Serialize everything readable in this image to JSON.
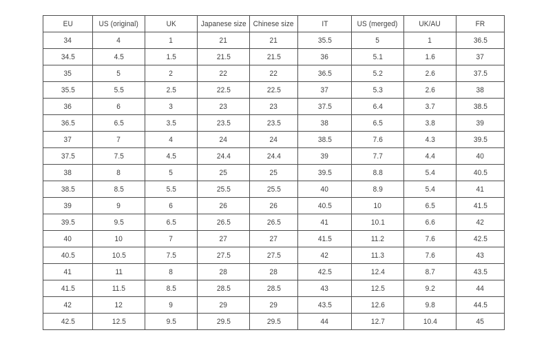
{
  "colors": {
    "background": "#ffffff",
    "border": "#4d4d4d",
    "text": "#3d3d3d"
  },
  "table": {
    "name": "shoe-size-conversion-chart",
    "headers": [
      "EU",
      "US (original)",
      "UK",
      "Japanese size",
      "Chinese size",
      "IT",
      "US (merged)",
      "UK/AU",
      "FR"
    ],
    "rows": [
      [
        "34",
        "4",
        "1",
        "21",
        "21",
        "35.5",
        "5",
        "1",
        "36.5"
      ],
      [
        "34.5",
        "4.5",
        "1.5",
        "21.5",
        "21.5",
        "36",
        "5.1",
        "1.6",
        "37"
      ],
      [
        "35",
        "5",
        "2",
        "22",
        "22",
        "36.5",
        "5.2",
        "2.6",
        "37.5"
      ],
      [
        "35.5",
        "5.5",
        "2.5",
        "22.5",
        "22.5",
        "37",
        "5.3",
        "2.6",
        "38"
      ],
      [
        "36",
        "6",
        "3",
        "23",
        "23",
        "37.5",
        "6.4",
        "3.7",
        "38.5"
      ],
      [
        "36.5",
        "6.5",
        "3.5",
        "23.5",
        "23.5",
        "38",
        "6.5",
        "3.8",
        "39"
      ],
      [
        "37",
        "7",
        "4",
        "24",
        "24",
        "38.5",
        "7.6",
        "4.3",
        "39.5"
      ],
      [
        "37.5",
        "7.5",
        "4.5",
        "24.4",
        "24.4",
        "39",
        "7.7",
        "4.4",
        "40"
      ],
      [
        "38",
        "8",
        "5",
        "25",
        "25",
        "39.5",
        "8.8",
        "5.4",
        "40.5"
      ],
      [
        "38.5",
        "8.5",
        "5.5",
        "25.5",
        "25.5",
        "40",
        "8.9",
        "5.4",
        "41"
      ],
      [
        "39",
        "9",
        "6",
        "26",
        "26",
        "40.5",
        "10",
        "6.5",
        "41.5"
      ],
      [
        "39.5",
        "9.5",
        "6.5",
        "26.5",
        "26.5",
        "41",
        "10.1",
        "6.6",
        "42"
      ],
      [
        "40",
        "10",
        "7",
        "27",
        "27",
        "41.5",
        "11.2",
        "7.6",
        "42.5"
      ],
      [
        "40.5",
        "10.5",
        "7.5",
        "27.5",
        "27.5",
        "42",
        "11.3",
        "7.6",
        "43"
      ],
      [
        "41",
        "11",
        "8",
        "28",
        "28",
        "42.5",
        "12.4",
        "8.7",
        "43.5"
      ],
      [
        "41.5",
        "11.5",
        "8.5",
        "28.5",
        "28.5",
        "43",
        "12.5",
        "9.2",
        "44"
      ],
      [
        "42",
        "12",
        "9",
        "29",
        "29",
        "43.5",
        "12.6",
        "9.8",
        "44.5"
      ],
      [
        "42.5",
        "12.5",
        "9.5",
        "29.5",
        "29.5",
        "44",
        "12.7",
        "10.4",
        "45"
      ]
    ]
  }
}
